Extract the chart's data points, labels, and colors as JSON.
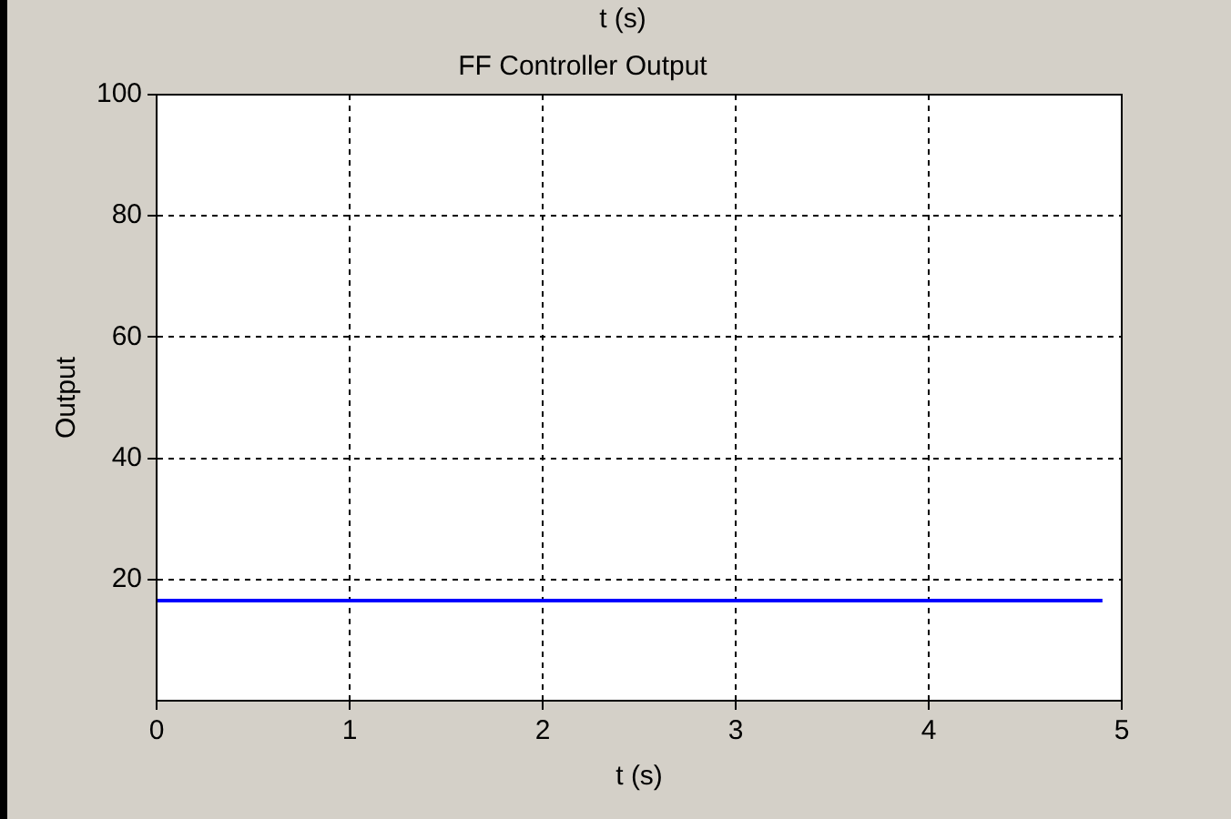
{
  "chart_data": {
    "type": "line",
    "title": "FF Controller Output",
    "xlabel": "t (s)",
    "ylabel": "Output",
    "annotations": [
      "t (s)"
    ],
    "x": [
      0,
      4.9
    ],
    "series": [
      {
        "color": "#0000ff",
        "values": [
          16.5,
          16.5
        ]
      }
    ],
    "xlim": [
      0,
      5
    ],
    "xticks": [
      0,
      1,
      2,
      3,
      4,
      5
    ],
    "ylim": [
      0,
      100
    ],
    "yticks": [
      20,
      40,
      60,
      80,
      100
    ],
    "grid": true,
    "line_style": "solid",
    "marker": "none"
  }
}
